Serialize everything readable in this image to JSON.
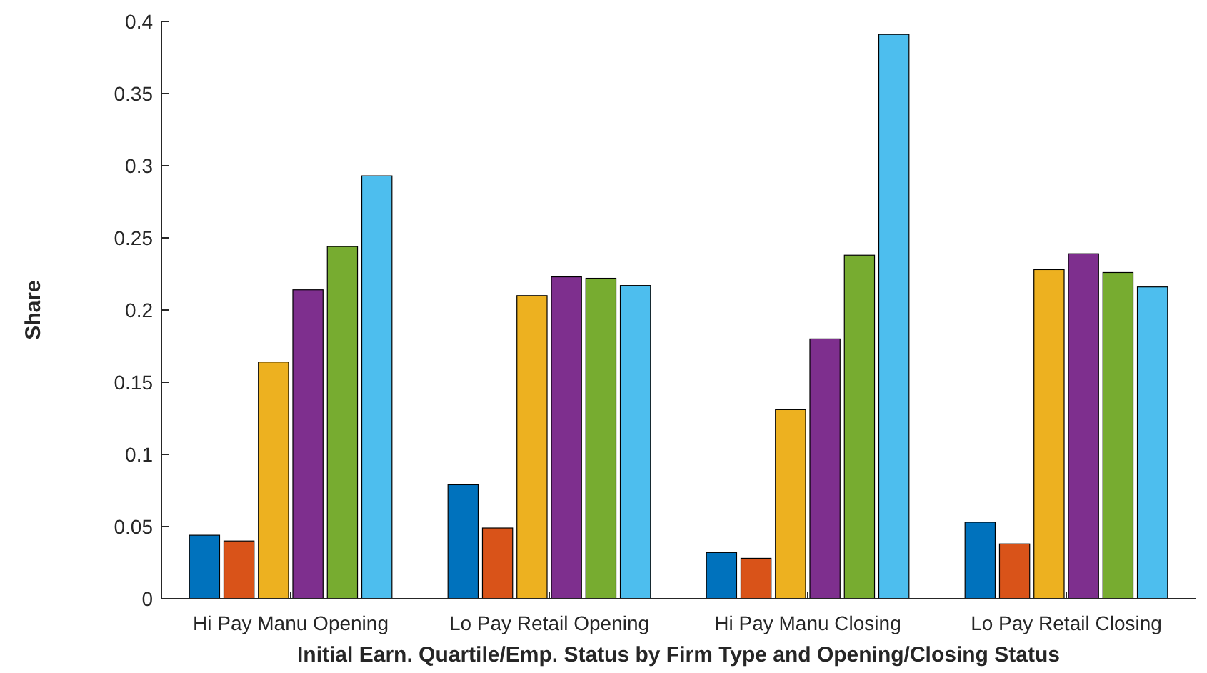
{
  "chart_data": {
    "type": "bar",
    "xlabel": "Initial Earn. Quartile/Emp. Status by Firm Type and Opening/Closing Status",
    "ylabel": "Share",
    "categories": [
      "Hi Pay Manu Opening",
      "Lo Pay Retail Opening",
      "Hi Pay Manu Closing",
      "Lo Pay Retail Closing"
    ],
    "series": [
      {
        "color": "#0072bd",
        "values": [
          0.044,
          0.079,
          0.032,
          0.053
        ]
      },
      {
        "color": "#d95319",
        "values": [
          0.04,
          0.049,
          0.028,
          0.038
        ]
      },
      {
        "color": "#edb120",
        "values": [
          0.164,
          0.21,
          0.131,
          0.228
        ]
      },
      {
        "color": "#7e2f8e",
        "values": [
          0.214,
          0.223,
          0.18,
          0.239
        ]
      },
      {
        "color": "#77ac30",
        "values": [
          0.244,
          0.222,
          0.238,
          0.226
        ]
      },
      {
        "color": "#4dbeee",
        "values": [
          0.293,
          0.217,
          0.391,
          0.216
        ]
      }
    ],
    "ylim": [
      0,
      0.4
    ],
    "yticks": [
      0,
      0.05,
      0.1,
      0.15,
      0.2,
      0.25,
      0.3,
      0.35,
      0.4
    ],
    "grid": false
  }
}
